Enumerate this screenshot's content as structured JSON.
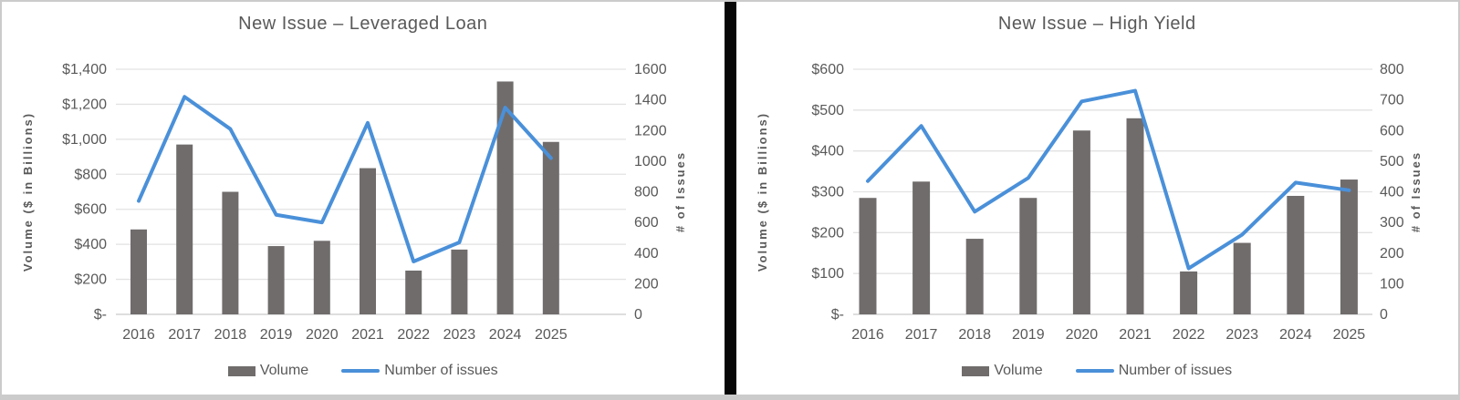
{
  "colors": {
    "bar": "#706c6c",
    "line": "#4a90d9",
    "text": "#595959",
    "grid": "#e2e2e2",
    "axis_line": "#c9c9c9",
    "panel_background": "#ffffff",
    "page_background": "#cbcbcb",
    "divider": "#070707"
  },
  "chart_data": [
    {
      "type": "bar+line combo",
      "title": "New Issue – Leveraged Loan",
      "categories": [
        "2016",
        "2017",
        "2018",
        "2019",
        "2020",
        "2021",
        "2022",
        "2023",
        "2024",
        "2025"
      ],
      "series": [
        {
          "name": "Volume",
          "type": "bar",
          "axis": "left",
          "values": [
            485,
            970,
            700,
            390,
            420,
            835,
            250,
            370,
            1330,
            985
          ]
        },
        {
          "name": "Number of issues",
          "type": "line",
          "axis": "right",
          "values": [
            740,
            1420,
            1210,
            650,
            600,
            1250,
            345,
            470,
            1350,
            1020
          ]
        }
      ],
      "left_axis": {
        "title": "Volume ($ in Billions)",
        "min": 0,
        "max": 1400,
        "step": 200,
        "tick_labels": [
          "$-",
          "$200",
          "$400",
          "$600",
          "$800",
          "$1,000",
          "$1,200",
          "$1,400"
        ]
      },
      "right_axis": {
        "title": "# of Issues",
        "min": 0,
        "max": 1600,
        "step": 200,
        "tick_labels": [
          "0",
          "200",
          "400",
          "600",
          "800",
          "1000",
          "1200",
          "1400",
          "1600"
        ]
      },
      "grid": "horizontal",
      "legend_position": "bottom"
    },
    {
      "type": "bar+line combo",
      "title": "New Issue – High Yield",
      "categories": [
        "2016",
        "2017",
        "2018",
        "2019",
        "2020",
        "2021",
        "2022",
        "2023",
        "2024",
        "2025"
      ],
      "series": [
        {
          "name": "Volume",
          "type": "bar",
          "axis": "left",
          "values": [
            285,
            325,
            185,
            285,
            450,
            480,
            105,
            175,
            290,
            330
          ]
        },
        {
          "name": "Number of issues",
          "type": "line",
          "axis": "right",
          "values": [
            435,
            615,
            335,
            445,
            695,
            730,
            150,
            260,
            430,
            405
          ]
        }
      ],
      "left_axis": {
        "title": "Volume ($ in Billions)",
        "min": 0,
        "max": 600,
        "step": 100,
        "tick_labels": [
          "$-",
          "$100",
          "$200",
          "$300",
          "$400",
          "$500",
          "$600"
        ]
      },
      "right_axis": {
        "title": "# of Issues",
        "min": 0,
        "max": 800,
        "step": 100,
        "tick_labels": [
          "0",
          "100",
          "200",
          "300",
          "400",
          "500",
          "600",
          "700",
          "800"
        ]
      },
      "grid": "horizontal",
      "legend_position": "bottom"
    }
  ]
}
